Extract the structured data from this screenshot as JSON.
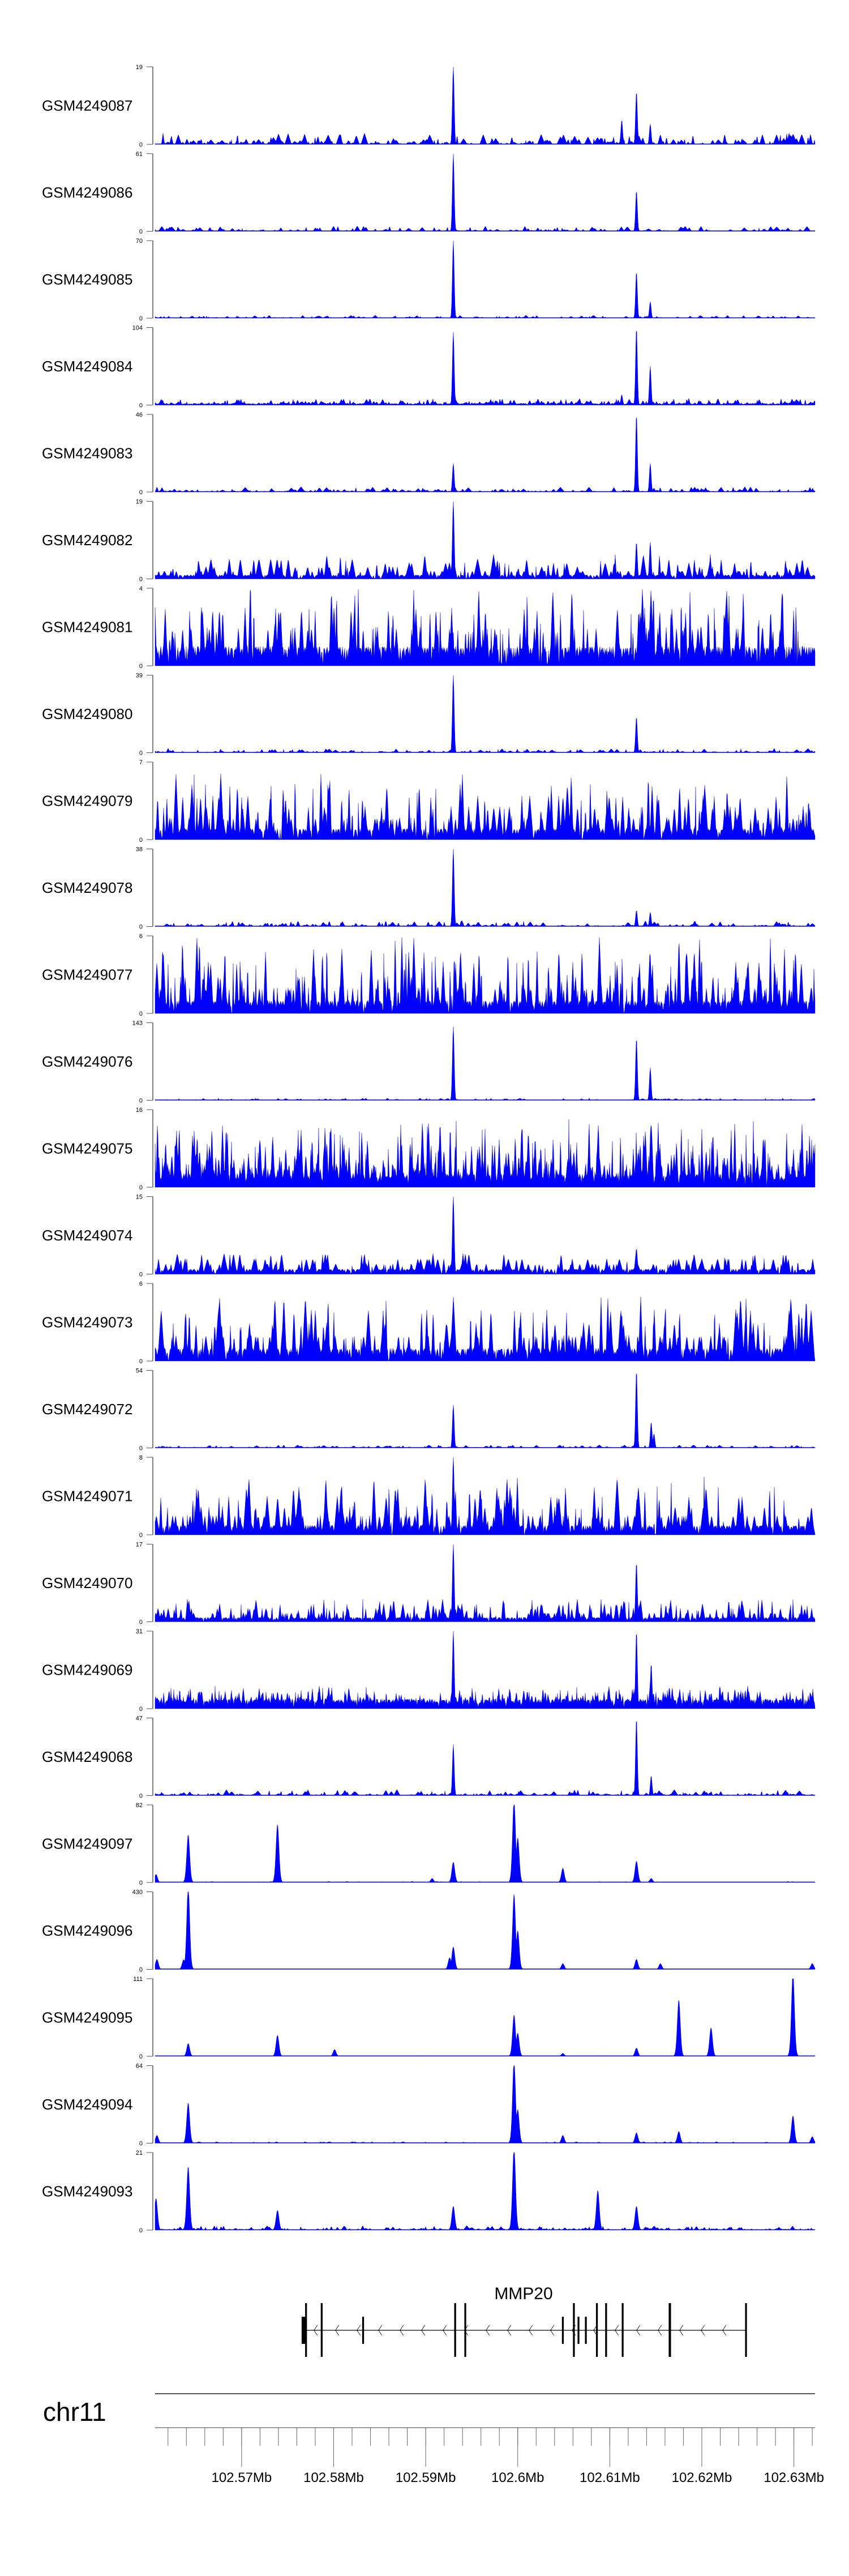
{
  "chart_data": {
    "type": "area",
    "title": "",
    "region": {
      "chromosome": "chr11",
      "start_mb": 102.5606,
      "end_mb": 102.6323
    },
    "xlabel": "",
    "ylabel": "",
    "x_ticks": [
      {
        "value": 102.57,
        "label": "102.57Mb"
      },
      {
        "value": 102.58,
        "label": "102.58Mb"
      },
      {
        "value": 102.59,
        "label": "102.59Mb"
      },
      {
        "value": 102.6,
        "label": "102.6Mb"
      },
      {
        "value": 102.61,
        "label": "102.61Mb"
      },
      {
        "value": 102.62,
        "label": "102.62Mb"
      },
      {
        "value": 102.63,
        "label": "102.63Mb"
      }
    ],
    "minor_tick_step_mb": 0.002,
    "color": "#0000ff",
    "axis_color": "#808080",
    "tracks": [
      {
        "name": "GSM4249087",
        "ymax": 19,
        "ymin_label": "0",
        "ymax_label": "19",
        "noise": {
          "amp": 0.15,
          "step": 3,
          "quant": false,
          "base": 0
        },
        "peaks": [
          [
            102.593,
            19
          ],
          [
            102.6113,
            6
          ],
          [
            102.6129,
            13
          ],
          [
            102.6144,
            5
          ]
        ]
      },
      {
        "name": "GSM4249086",
        "ymax": 61,
        "ymin_label": "0",
        "ymax_label": "61",
        "noise": {
          "amp": 0.07,
          "step": 3,
          "quant": false,
          "base": 0
        },
        "peaks": [
          [
            102.593,
            61
          ],
          [
            102.6129,
            32
          ]
        ]
      },
      {
        "name": "GSM4249085",
        "ymax": 70,
        "ymin_label": "0",
        "ymax_label": "70",
        "noise": {
          "amp": 0.04,
          "step": 3,
          "quant": false,
          "base": 0
        },
        "peaks": [
          [
            102.593,
            70
          ],
          [
            102.6129,
            42
          ],
          [
            102.6144,
            15
          ]
        ]
      },
      {
        "name": "GSM4249084",
        "ymax": 104,
        "ymin_label": "0",
        "ymax_label": "104",
        "noise": {
          "amp": 0.09,
          "step": 2,
          "quant": false,
          "base": 0.02
        },
        "peaks": [
          [
            102.593,
            98
          ],
          [
            102.6113,
            14
          ],
          [
            102.6129,
            104
          ],
          [
            102.6144,
            52
          ]
        ]
      },
      {
        "name": "GSM4249083",
        "ymax": 46,
        "ymin_label": "0",
        "ymax_label": "46",
        "noise": {
          "amp": 0.07,
          "step": 3,
          "quant": false,
          "base": 0
        },
        "peaks": [
          [
            102.593,
            17
          ],
          [
            102.6129,
            46
          ],
          [
            102.6144,
            17
          ]
        ]
      },
      {
        "name": "GSM4249082",
        "ymax": 19,
        "ymin_label": "0",
        "ymax_label": "19",
        "noise": {
          "amp": 0.3,
          "step": 3,
          "quant": true,
          "base": 0
        },
        "peaks": [
          [
            102.593,
            19
          ],
          [
            102.6129,
            9
          ],
          [
            102.6144,
            9
          ]
        ]
      },
      {
        "name": "GSM4249081",
        "ymax": 4,
        "ymin_label": "0",
        "ymax_label": "4",
        "noise": {
          "amp": 1.0,
          "step": 2,
          "quant": true,
          "base": 0
        },
        "peaks": []
      },
      {
        "name": "GSM4249080",
        "ymax": 39,
        "ymin_label": "0",
        "ymax_label": "39",
        "noise": {
          "amp": 0.06,
          "step": 3,
          "quant": false,
          "base": 0
        },
        "peaks": [
          [
            102.593,
            39
          ],
          [
            102.6129,
            18
          ]
        ]
      },
      {
        "name": "GSM4249079",
        "ymax": 7,
        "ymin_label": "0",
        "ymax_label": "7",
        "noise": {
          "amp": 0.9,
          "step": 2.5,
          "quant": true,
          "base": 0
        },
        "peaks": []
      },
      {
        "name": "GSM4249078",
        "ymax": 38,
        "ymin_label": "0",
        "ymax_label": "38",
        "noise": {
          "amp": 0.08,
          "step": 3,
          "quant": false,
          "base": 0
        },
        "peaks": [
          [
            102.593,
            38
          ],
          [
            102.6129,
            8
          ],
          [
            102.6144,
            7
          ]
        ]
      },
      {
        "name": "GSM4249077",
        "ymax": 6,
        "ymin_label": "0",
        "ymax_label": "6",
        "noise": {
          "amp": 1.0,
          "step": 2,
          "quant": true,
          "base": 0
        },
        "peaks": []
      },
      {
        "name": "GSM4249076",
        "ymax": 143,
        "ymin_label": "0",
        "ymax_label": "143",
        "noise": {
          "amp": 0.03,
          "step": 3,
          "quant": false,
          "base": 0
        },
        "peaks": [
          [
            102.593,
            136
          ],
          [
            102.6129,
            115
          ],
          [
            102.6144,
            60
          ]
        ]
      },
      {
        "name": "GSM4249075",
        "ymax": 16,
        "ymin_label": "0",
        "ymax_label": "16",
        "noise": {
          "amp": 0.9,
          "step": 1.5,
          "quant": true,
          "base": 0.15
        },
        "peaks": []
      },
      {
        "name": "GSM4249074",
        "ymax": 15,
        "ymin_label": "0",
        "ymax_label": "15",
        "noise": {
          "amp": 0.3,
          "step": 3,
          "quant": true,
          "base": 0
        },
        "peaks": [
          [
            102.593,
            15
          ],
          [
            102.6129,
            5
          ]
        ]
      },
      {
        "name": "GSM4249073",
        "ymax": 6,
        "ymin_label": "0",
        "ymax_label": "6",
        "noise": {
          "amp": 0.85,
          "step": 2.5,
          "quant": true,
          "base": 0
        },
        "peaks": []
      },
      {
        "name": "GSM4249072",
        "ymax": 54,
        "ymin_label": "0",
        "ymax_label": "54",
        "noise": {
          "amp": 0.04,
          "step": 3,
          "quant": false,
          "base": 0
        },
        "peaks": [
          [
            102.593,
            30
          ],
          [
            102.6129,
            54
          ],
          [
            102.6145,
            18
          ],
          [
            102.6148,
            10
          ]
        ]
      },
      {
        "name": "GSM4249071",
        "ymax": 8,
        "ymin_label": "0",
        "ymax_label": "8",
        "noise": {
          "amp": 0.75,
          "step": 2.5,
          "quant": true,
          "base": 0
        },
        "peaks": [
          [
            102.593,
            8
          ]
        ]
      },
      {
        "name": "GSM4249070",
        "ymax": 17,
        "ymin_label": "0",
        "ymax_label": "17",
        "noise": {
          "amp": 0.3,
          "step": 2,
          "quant": true,
          "base": 0
        },
        "peaks": [
          [
            102.593,
            17
          ],
          [
            102.6129,
            13
          ]
        ]
      },
      {
        "name": "GSM4249069",
        "ymax": 31,
        "ymin_label": "0",
        "ymax_label": "31",
        "noise": {
          "amp": 0.3,
          "step": 1.5,
          "quant": false,
          "base": 0.12
        },
        "peaks": [
          [
            102.593,
            31
          ],
          [
            102.6129,
            31
          ],
          [
            102.6145,
            18
          ]
        ]
      },
      {
        "name": "GSM4249068",
        "ymax": 47,
        "ymin_label": "0",
        "ymax_label": "47",
        "noise": {
          "amp": 0.08,
          "step": 3,
          "quant": false,
          "base": 0
        },
        "peaks": [
          [
            102.593,
            31
          ],
          [
            102.6129,
            47
          ],
          [
            102.6145,
            12
          ]
        ]
      },
      {
        "name": "GSM4249097",
        "ymax": 82,
        "ymin_label": "0",
        "ymax_label": "82",
        "noise": {
          "amp": 0.015,
          "step": 4,
          "quant": false,
          "base": 0
        },
        "peaks": [
          [
            102.5607,
            8
          ],
          [
            102.5642,
            47
          ],
          [
            102.5739,
            57
          ],
          [
            102.5907,
            4
          ],
          [
            102.593,
            20
          ],
          [
            102.5996,
            82
          ],
          [
            102.6,
            44
          ],
          [
            102.6049,
            14
          ],
          [
            102.6129,
            21
          ],
          [
            102.6145,
            4
          ]
        ]
      },
      {
        "name": "GSM4249096",
        "ymax": 430,
        "ymin_label": "0",
        "ymax_label": "430",
        "noise": {
          "amp": 0.008,
          "step": 4,
          "quant": false,
          "base": 0
        },
        "peaks": [
          [
            102.5608,
            52
          ],
          [
            102.5637,
            50
          ],
          [
            102.5642,
            430
          ],
          [
            102.5926,
            60
          ],
          [
            102.593,
            116
          ],
          [
            102.5996,
            387
          ],
          [
            102.6,
            200
          ],
          [
            102.6049,
            30
          ],
          [
            102.6129,
            52
          ],
          [
            102.6155,
            30
          ],
          [
            102.632,
            30
          ]
        ]
      },
      {
        "name": "GSM4249095",
        "ymax": 111,
        "ymin_label": "0",
        "ymax_label": "111",
        "noise": {
          "amp": 0.01,
          "step": 4,
          "quant": false,
          "base": 0
        },
        "peaks": [
          [
            102.5642,
            17
          ],
          [
            102.5739,
            28
          ],
          [
            102.5801,
            9
          ],
          [
            102.5996,
            55
          ],
          [
            102.6,
            31
          ],
          [
            102.6049,
            4
          ],
          [
            102.6129,
            11
          ],
          [
            102.6175,
            75
          ],
          [
            102.621,
            38
          ],
          [
            102.6299,
            111
          ]
        ]
      },
      {
        "name": "GSM4249094",
        "ymax": 64,
        "ymin_label": "0",
        "ymax_label": "64",
        "noise": {
          "amp": 0.02,
          "step": 4,
          "quant": false,
          "base": 0
        },
        "peaks": [
          [
            102.5608,
            6
          ],
          [
            102.5642,
            31
          ],
          [
            102.5996,
            64
          ],
          [
            102.6,
            26
          ],
          [
            102.6049,
            6
          ],
          [
            102.6129,
            8
          ],
          [
            102.6175,
            9
          ],
          [
            102.6299,
            21
          ],
          [
            102.632,
            5
          ]
        ]
      },
      {
        "name": "GSM4249093",
        "ymax": 21,
        "ymin_label": "0",
        "ymax_label": "21",
        "noise": {
          "amp": 0.06,
          "step": 2.5,
          "quant": false,
          "base": 0
        },
        "peaks": [
          [
            102.5607,
            8
          ],
          [
            102.5642,
            16
          ],
          [
            102.5739,
            5
          ],
          [
            102.593,
            6
          ],
          [
            102.5996,
            21
          ],
          [
            102.6087,
            10
          ],
          [
            102.6129,
            6
          ]
        ]
      }
    ],
    "gene": {
      "name": "MMP20",
      "strand": "-",
      "start_mb": 102.577,
      "end_mb": 102.6248,
      "exons": [
        [
          102.57652,
          102.57701,
          "utr"
        ],
        [
          102.5769,
          102.5771,
          "cds"
        ],
        [
          102.5786,
          102.5788,
          "cds"
        ],
        [
          102.5831,
          102.5833,
          "utr"
        ],
        [
          102.5931,
          102.5933,
          "cds"
        ],
        [
          102.5942,
          102.5944,
          "cds"
        ],
        [
          102.6048,
          102.605,
          "utr"
        ],
        [
          102.606,
          102.6062,
          "cds"
        ],
        [
          102.6065,
          102.6067,
          "utr"
        ],
        [
          102.6073,
          102.6075,
          "utr"
        ],
        [
          102.6085,
          102.6087,
          "cds"
        ],
        [
          102.6095,
          102.6097,
          "cds"
        ],
        [
          102.6113,
          102.6115,
          "cds"
        ],
        [
          102.6164,
          102.61665,
          "cds"
        ],
        [
          102.6247,
          102.6249,
          "cds"
        ]
      ]
    },
    "chromosome_label": "chr11"
  }
}
